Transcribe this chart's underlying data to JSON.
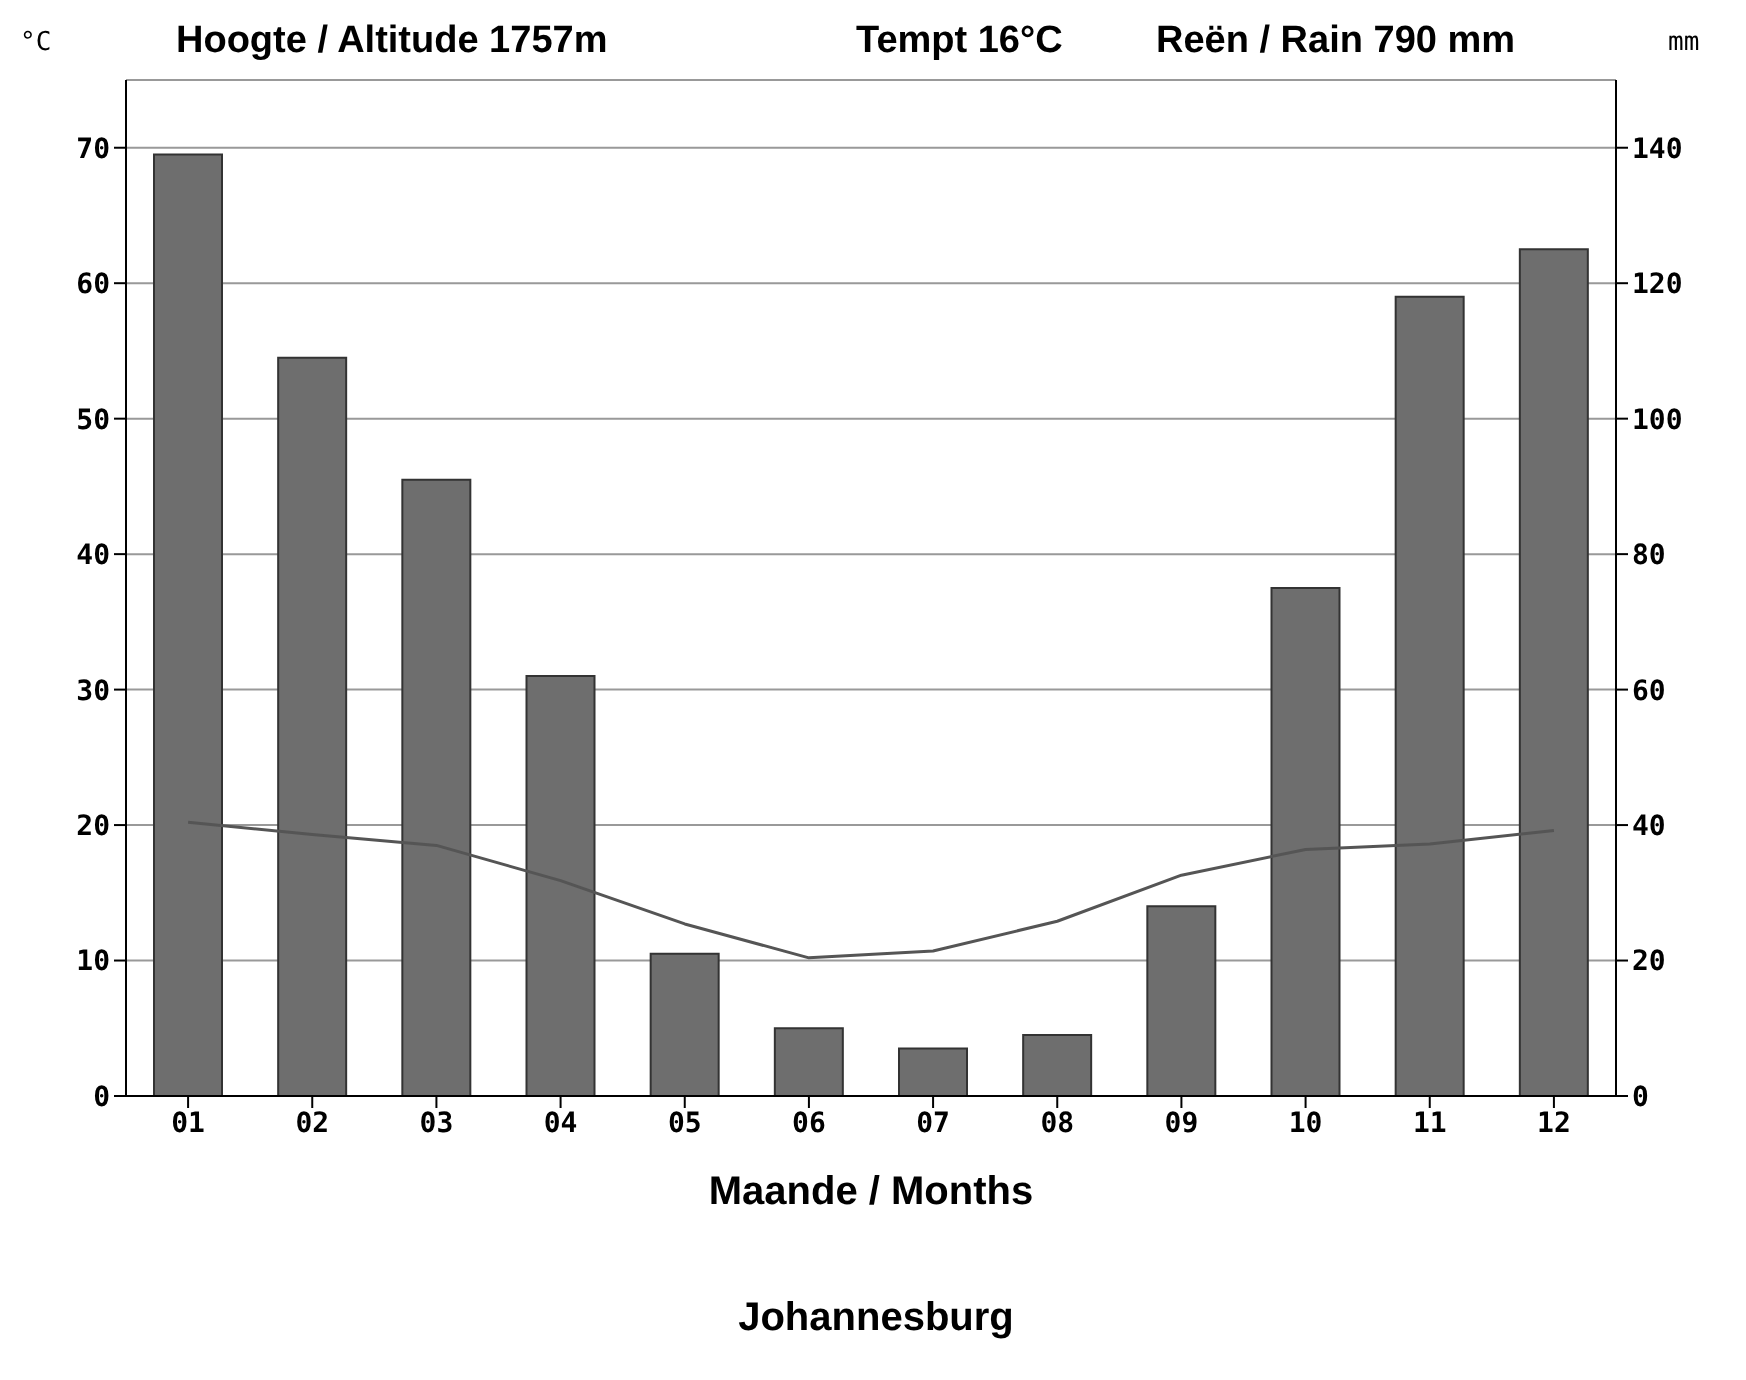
{
  "chart_data": {
    "type": "bar",
    "title": "Hoogte / Altitude 1757m",
    "xlabel": "Maande / Months",
    "ylabel": "°C",
    "y2label": "mm",
    "annotations": [
      "Tempt 16°C",
      "Reën / Rain 790 mm",
      "Johannesburg"
    ],
    "categories": [
      "01",
      "02",
      "03",
      "04",
      "05",
      "06",
      "07",
      "08",
      "09",
      "10",
      "11",
      "12"
    ],
    "series": [
      {
        "axis": "y2",
        "color": "#6e6e6e",
        "values": [
          139,
          109,
          91,
          62,
          21,
          10,
          7,
          9,
          28,
          75,
          118,
          125
        ]
      },
      {
        "type": "line",
        "axis": "y",
        "color": "#555555",
        "values": [
          20.2,
          19.3,
          18.5,
          15.9,
          12.7,
          10.2,
          10.7,
          12.9,
          16.3,
          18.2,
          18.6,
          19.6
        ]
      }
    ],
    "ylim": [
      0,
      75
    ],
    "yticks": [
      0,
      10,
      20,
      30,
      40,
      50,
      60,
      70
    ],
    "y2lim": [
      0,
      150
    ],
    "y2ticks": [
      0,
      20,
      40,
      60,
      80,
      100,
      120,
      140
    ],
    "grid": "y",
    "legend": false,
    "marker": "none",
    "line_style": "solid"
  }
}
